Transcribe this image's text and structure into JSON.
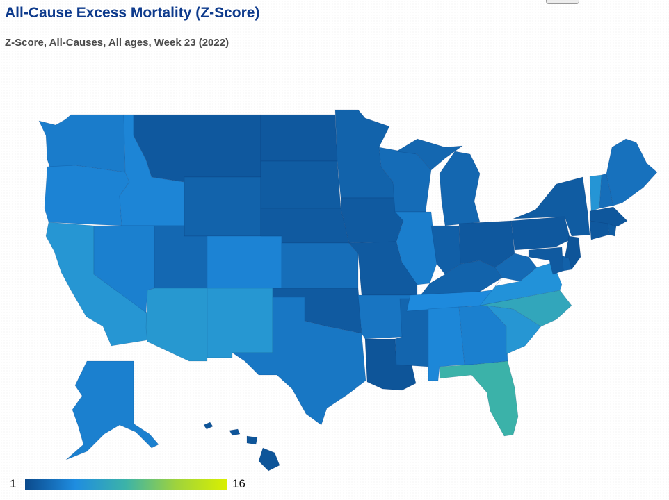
{
  "title": "All-Cause Excess Mortality (Z-Score)",
  "subtitle": "Z-Score, All-Causes, All ages, Week 23 (2022)",
  "legend": {
    "min_label": "1",
    "max_label": "16",
    "scale": [
      "#0b4a8c",
      "#1f8de0",
      "#3cb3a8",
      "#9fd33c",
      "#d9ef00"
    ]
  },
  "states": {
    "WA": {
      "z": 3.8
    },
    "OR": {
      "z": 4.2
    },
    "CA": {
      "z": 5.6
    },
    "ID": {
      "z": 4.3
    },
    "NV": {
      "z": 4.0
    },
    "MT": {
      "z": 1.8
    },
    "WY": {
      "z": 2.4
    },
    "UT": {
      "z": 2.7
    },
    "AZ": {
      "z": 5.8
    },
    "CO": {
      "z": 4.2
    },
    "NM": {
      "z": 5.7
    },
    "ND": {
      "z": 1.8
    },
    "SD": {
      "z": 2.0
    },
    "NE": {
      "z": 1.9
    },
    "KS": {
      "z": 3.0
    },
    "OK": {
      "z": 1.9
    },
    "TX": {
      "z": 3.5
    },
    "MN": {
      "z": 2.4
    },
    "IA": {
      "z": 1.9
    },
    "MO": {
      "z": 1.9
    },
    "AR": {
      "z": 3.4
    },
    "LA": {
      "z": 1.6
    },
    "WI": {
      "z": 2.9
    },
    "IL": {
      "z": 3.9
    },
    "MS": {
      "z": 2.5
    },
    "MI": {
      "z": 2.6
    },
    "IN": {
      "z": 2.2
    },
    "KY": {
      "z": 2.4
    },
    "TN": {
      "z": 4.6
    },
    "AL": {
      "z": 4.4
    },
    "OH": {
      "z": 1.8
    },
    "WV": {
      "z": 2.8
    },
    "GA": {
      "z": 4.0
    },
    "FL": {
      "z": 8.4
    },
    "SC": {
      "z": 5.6
    },
    "NC": {
      "z": 7.2
    },
    "VA": {
      "z": 5.2
    },
    "PA": {
      "z": 1.8
    },
    "NY": {
      "z": 2.0
    },
    "NJ": {
      "z": 1.6
    },
    "DE": {
      "z": 2.3
    },
    "MD": {
      "z": 1.9
    },
    "VT": {
      "z": 5.5
    },
    "NH": {
      "z": 3.0
    },
    "ME": {
      "z": 3.2
    },
    "MA": {
      "z": 1.7
    },
    "CT": {
      "z": 1.8
    },
    "RI": {
      "z": 2.0
    },
    "AK": {
      "z": 4.0
    },
    "HI": {
      "z": 1.6
    }
  }
}
